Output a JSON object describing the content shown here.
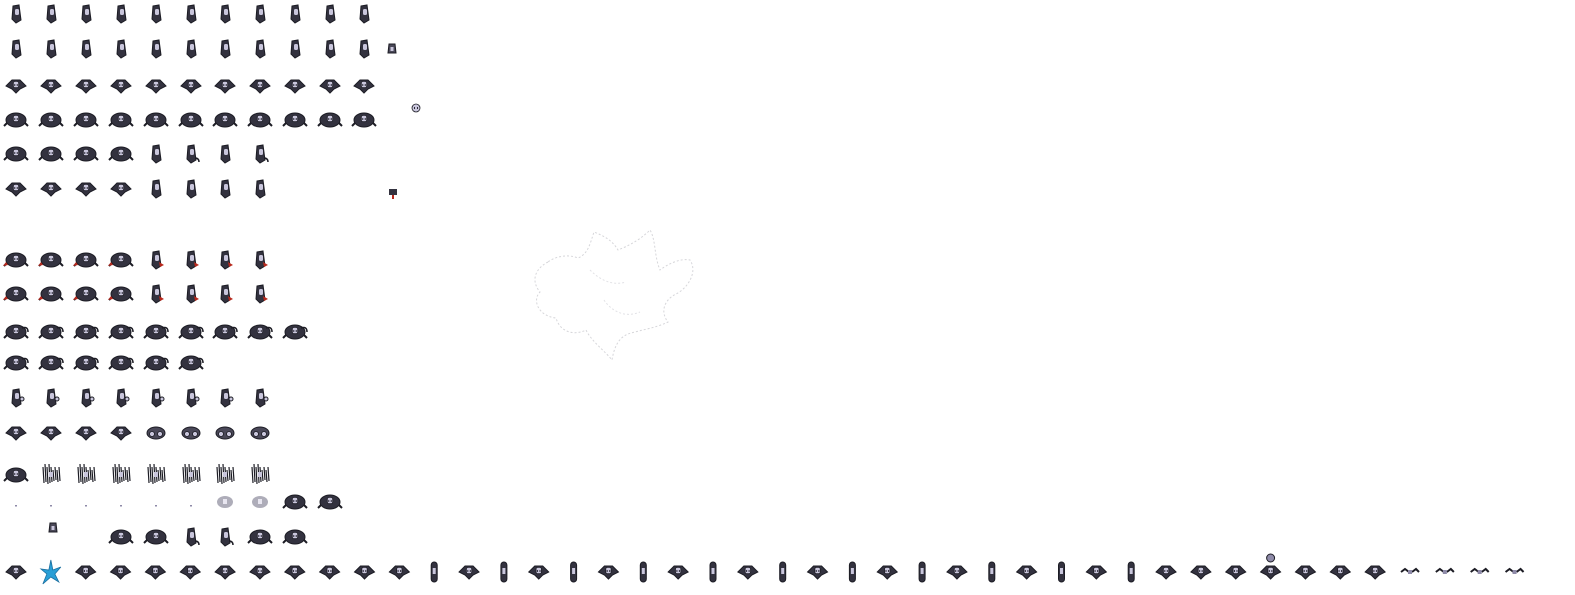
{
  "sheet": {
    "background": "#ffffff",
    "palette": {
      "outline": "#1c1c24",
      "dark": "#33323f",
      "mid": "#4a4858",
      "face": "#c9c6dc",
      "face_shade": "#8e8aa8",
      "eye": "#2a2836",
      "red": "#b8281c",
      "cyan": "#2a9fd6",
      "faint": "#c8c8cc"
    },
    "rows": [
      {
        "id": "r1",
        "frames": [
          "side",
          "side",
          "side",
          "side",
          "side",
          "side",
          "side",
          "side",
          "side",
          "side",
          "side"
        ]
      },
      {
        "id": "r2",
        "frames": [
          "side",
          "side",
          "side",
          "side",
          "side",
          "side",
          "side",
          "side",
          "side",
          "side",
          "side",
          "small-head"
        ]
      },
      {
        "id": "r3",
        "frames": [
          "wide",
          "wide",
          "wide",
          "wide",
          "wide",
          "wide",
          "wide",
          "wide",
          "wide",
          "wide",
          "wide",
          "tiny-ghost"
        ]
      },
      {
        "id": "r4",
        "frames": [
          "round",
          "round",
          "round",
          "round",
          "round",
          "round",
          "round",
          "round",
          "round",
          "round",
          "round"
        ]
      },
      {
        "id": "r5",
        "frames": [
          "round",
          "round",
          "round",
          "round",
          "side",
          "side-curl",
          "side",
          "side-curl"
        ]
      },
      {
        "id": "r6",
        "frames": [
          "wide",
          "wide",
          "wide",
          "wide",
          "side",
          "side",
          "side",
          "side",
          "tiny-tag"
        ]
      },
      {
        "id": "r7",
        "frames": [
          "round-red",
          "round-red",
          "round-red",
          "round-red",
          "side-red",
          "side-red",
          "side-red",
          "side-red"
        ]
      },
      {
        "id": "r8",
        "frames": [
          "round-red",
          "round-red",
          "round-red",
          "round-red",
          "side-red",
          "side-red",
          "side-red",
          "side-red"
        ]
      },
      {
        "id": "r9",
        "frames": [
          "round-tail",
          "round-tail",
          "round-tail",
          "round-tail",
          "round-tail",
          "round-tail",
          "round-tail",
          "round-tail",
          "round-tail"
        ]
      },
      {
        "id": "r10",
        "frames": [
          "round-tail",
          "round-tail",
          "round-tail",
          "round-tail",
          "round-tail",
          "round-tail"
        ]
      },
      {
        "id": "r11",
        "frames": [
          "side-ring",
          "side-ring",
          "side-ring",
          "side-ring",
          "side-ring",
          "side-ring",
          "side-ring",
          "side-ring"
        ]
      },
      {
        "id": "r12",
        "frames": [
          "wide",
          "wide",
          "wide",
          "wide",
          "curl",
          "curl",
          "curl",
          "curl"
        ]
      },
      {
        "id": "r13",
        "frames": [
          "round",
          "shatter",
          "shatter",
          "shatter",
          "shatter",
          "shatter",
          "shatter",
          "shatter"
        ]
      },
      {
        "id": "r14",
        "frames": [
          "dot",
          "dot",
          "dot",
          "dot",
          "dot",
          "dot",
          "fade",
          "fade",
          "round",
          "round"
        ]
      },
      {
        "id": "r15",
        "frames": [
          "none",
          "small-head",
          "none",
          "round",
          "round",
          "side-curl",
          "side-curl",
          "round",
          "round"
        ]
      },
      {
        "id": "r16",
        "frames": [
          "wide",
          "splash",
          "wide",
          "wide",
          "wide",
          "wide",
          "wide",
          "wide",
          "wide",
          "wide",
          "wide",
          "wide",
          "capsule",
          "wide",
          "capsule",
          "wide",
          "capsule",
          "wide",
          "capsule",
          "wide",
          "capsule",
          "wide",
          "capsule",
          "wide",
          "capsule",
          "wide",
          "capsule",
          "wide",
          "capsule",
          "wide",
          "capsule",
          "wide",
          "capsule",
          "wide",
          "wide",
          "wide",
          "wide-head",
          "wide",
          "wide",
          "wide",
          "scatter",
          "scatter",
          "scatter",
          "scatter"
        ]
      }
    ]
  }
}
